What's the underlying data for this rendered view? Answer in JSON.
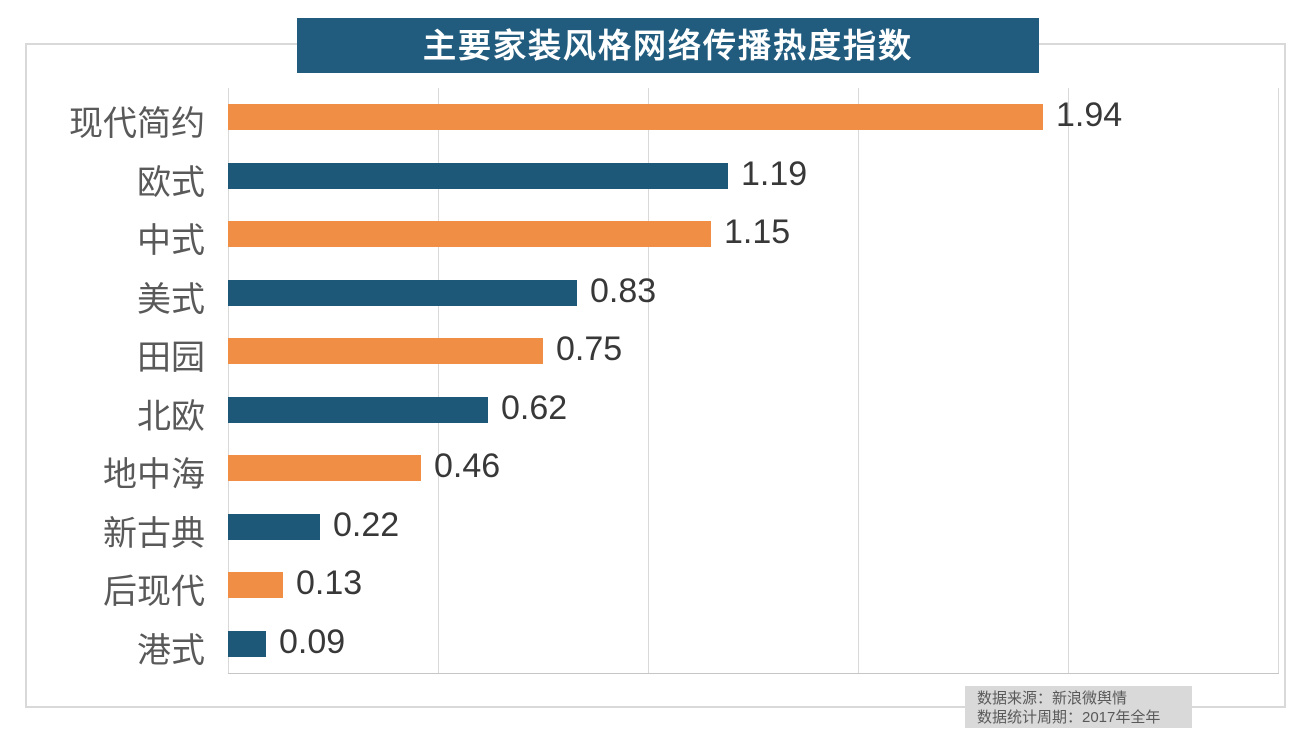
{
  "title": "主要家装风格网络传播热度指数",
  "chart_data": {
    "type": "bar",
    "orientation": "horizontal",
    "title": "主要家装风格网络传播热度指数",
    "categories": [
      "现代简约",
      "欧式",
      "中式",
      "美式",
      "田园",
      "北欧",
      "地中海",
      "新古典",
      "后现代",
      "港式"
    ],
    "values": [
      1.94,
      1.19,
      1.15,
      0.83,
      0.75,
      0.62,
      0.46,
      0.22,
      0.13,
      0.09
    ],
    "value_labels": [
      "1.94",
      "1.19",
      "1.15",
      "0.83",
      "0.75",
      "0.62",
      "0.46",
      "0.22",
      "0.13",
      "0.09"
    ],
    "xlim": [
      0,
      2.5
    ],
    "gridline_step": 0.5,
    "grid": "on",
    "legend": "none",
    "xlabel": "",
    "ylabel": ""
  },
  "footer": {
    "source_line": "数据来源：新浪微舆情",
    "period_line": "数据统计周期：2017年全年"
  },
  "colors": {
    "bar_orange": "#EF8E44",
    "bar_blue": "#1E5878",
    "banner_bg": "#215C7E",
    "banner_text": "#FFFFFF",
    "gridline": "#D9D9D9",
    "category_text": "#595959",
    "value_text": "#383838",
    "footer_bg": "#D9D9D9",
    "footer_text": "#595959"
  }
}
